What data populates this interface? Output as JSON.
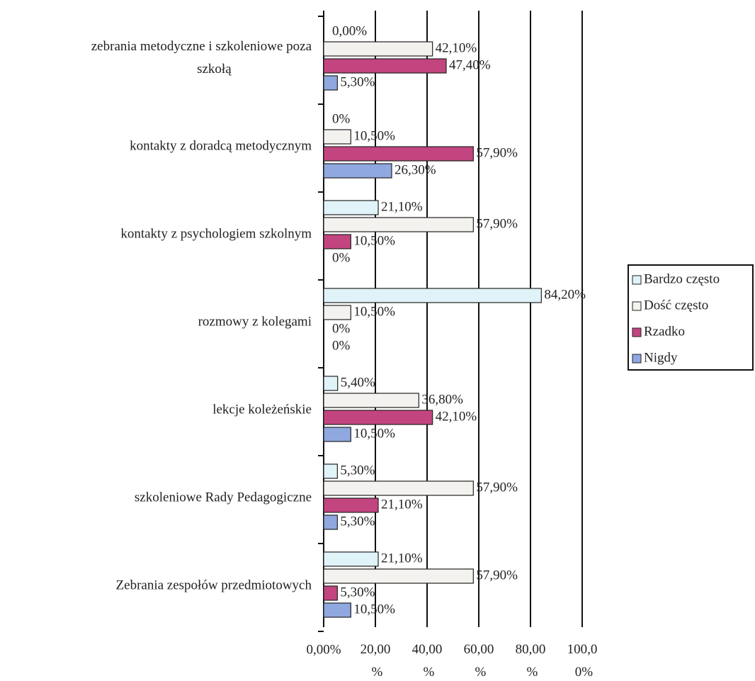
{
  "chart_data": {
    "type": "bar",
    "orientation": "horizontal",
    "categories": [
      "zebrania metodyczne i szkoleniowe poza szkołą",
      "kontakty z doradcą metodycznym",
      "kontakty z psychologiem szkolnym",
      "rozmowy z kolegami",
      "lekcje koleżeńskie",
      "szkoleniowe Rady Pedagogiczne",
      "Zebrania zespołów przedmiotowych"
    ],
    "series": [
      {
        "name": "Bardzo często",
        "color": "#dff3f8",
        "values": [
          0,
          0,
          21.1,
          84.2,
          5.4,
          5.3,
          21.1
        ],
        "value_labels": [
          "0,00%",
          "0%",
          "21,10%",
          "84,20%",
          "5,40%",
          "5,30%",
          "21,10%"
        ]
      },
      {
        "name": "Dość często",
        "color": "#f3f2ee",
        "values": [
          42.1,
          10.5,
          57.9,
          10.5,
          36.8,
          57.9,
          57.9
        ],
        "value_labels": [
          "42,10%",
          "10,50%",
          "57,90%",
          "10,50%",
          "36,80%",
          "57,90%",
          "57,90%"
        ]
      },
      {
        "name": "Rzadko",
        "color": "#c2457f",
        "values": [
          47.4,
          57.9,
          10.5,
          0,
          42.1,
          21.1,
          5.3
        ],
        "value_labels": [
          "47,40%",
          "57,90%",
          "10,50%",
          "0%",
          "42,10%",
          "21,10%",
          "5,30%"
        ]
      },
      {
        "name": "Nigdy",
        "color": "#8fa8e0",
        "values": [
          5.3,
          26.3,
          0,
          0,
          10.5,
          5.3,
          10.5
        ],
        "value_labels": [
          "5,30%",
          "26,30%",
          "0%",
          "0%",
          "10,50%",
          "5,30%",
          "10,50%"
        ]
      }
    ],
    "xlim": [
      0,
      100
    ],
    "xticks": [
      {
        "value": 0,
        "label": "0,00%"
      },
      {
        "value": 20,
        "label": "20,00 %"
      },
      {
        "value": 40,
        "label": "40,00 %"
      },
      {
        "value": 60,
        "label": "60,00 %"
      },
      {
        "value": 80,
        "label": "80,00 %"
      },
      {
        "value": 100,
        "label": "100,0 0%"
      }
    ],
    "grid": true,
    "legend": "right"
  }
}
